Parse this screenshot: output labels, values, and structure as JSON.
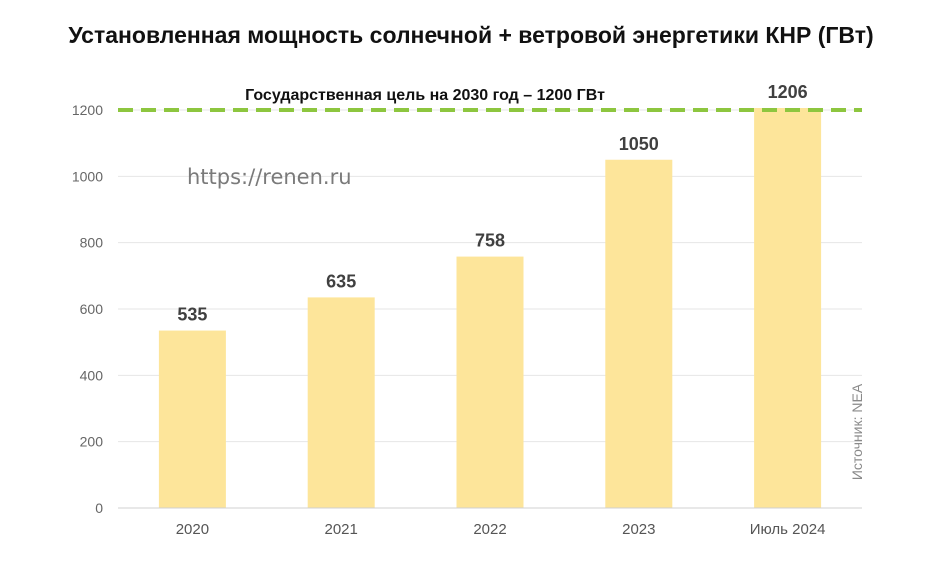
{
  "chart_data": {
    "type": "bar",
    "title": "Установленная мощность солнечной + ветровой энергетики КНР (ГВт)",
    "categories": [
      "2020",
      "2021",
      "2022",
      "2023",
      "Июль 2024"
    ],
    "values": [
      535,
      635,
      758,
      1050,
      1206
    ],
    "data_labels": [
      "535",
      "635",
      "758",
      "1050",
      "1206"
    ],
    "ylim": [
      0,
      1200
    ],
    "yticks": [
      0,
      200,
      400,
      600,
      800,
      1000,
      1200
    ],
    "grid": true,
    "bar_color": "#FDE59A",
    "target_line": {
      "value": 1200,
      "label": "Государственная цель на 2030 год – 1200 ГВт",
      "color": "#8DC63F"
    },
    "watermark": "https://renen.ru",
    "source": "Источник: NEA"
  }
}
